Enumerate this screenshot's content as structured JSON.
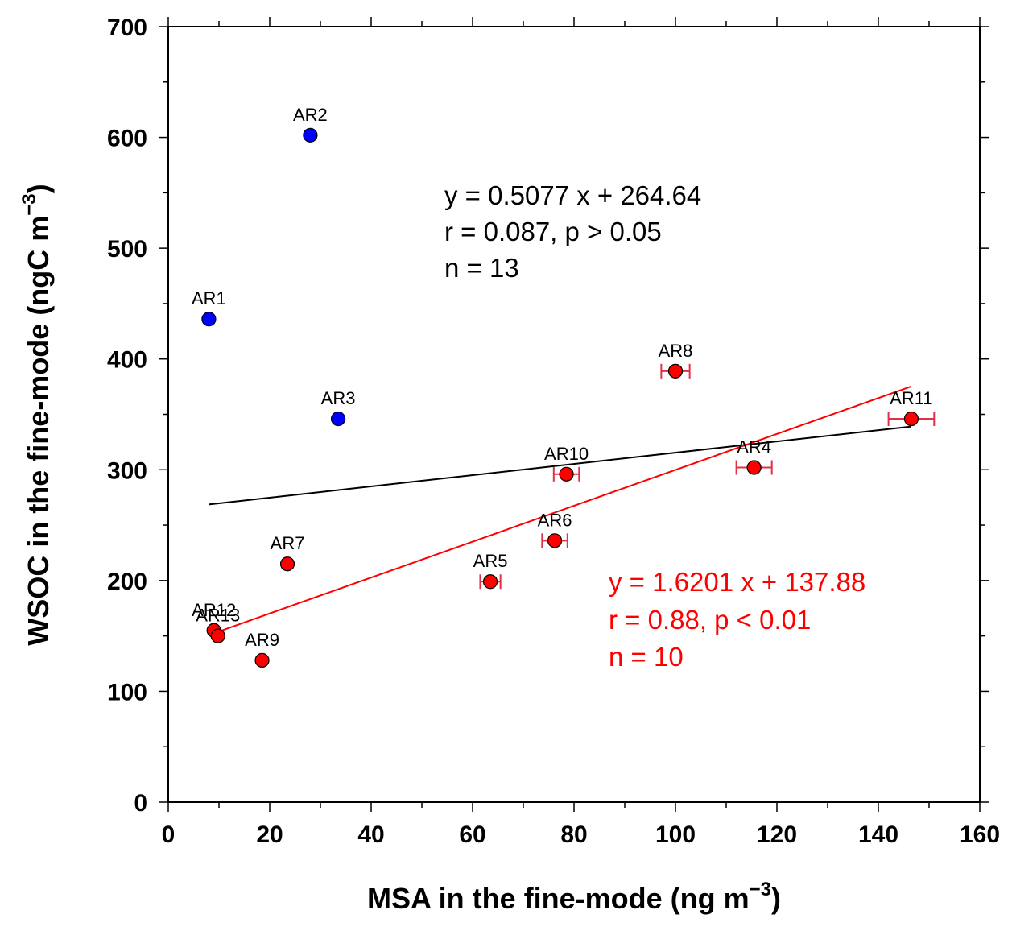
{
  "chart_data": {
    "type": "scatter",
    "xlabel": "MSA in the fine-mode (ng m",
    "xlabel_sup": "−3",
    "xlabel_end": ")",
    "ylabel": "WSOC in the fine-mode (ngC m",
    "ylabel_sup": "−3",
    "ylabel_end": ")",
    "xlim": [
      0,
      160
    ],
    "ylim": [
      0,
      700
    ],
    "xticks": [
      "0",
      "20",
      "40",
      "60",
      "80",
      "100",
      "120",
      "140",
      "160"
    ],
    "yticks": [
      "0",
      "100",
      "200",
      "300",
      "400",
      "500",
      "600",
      "700"
    ],
    "colors": {
      "blue": "#0000ff",
      "red": "#ff0000",
      "black": "#000000",
      "errorbar": "#e0304a"
    },
    "points": [
      {
        "label": "AR1",
        "x": 8,
        "y": 436,
        "color": "blue",
        "xerr": 0
      },
      {
        "label": "AR2",
        "x": 28,
        "y": 602,
        "color": "blue",
        "xerr": 0
      },
      {
        "label": "AR3",
        "x": 33.5,
        "y": 346,
        "color": "blue",
        "xerr": 0
      },
      {
        "label": "AR4",
        "x": 115.5,
        "y": 302,
        "color": "red",
        "xerr": 3.5
      },
      {
        "label": "AR5",
        "x": 63.5,
        "y": 199,
        "color": "red",
        "xerr": 2
      },
      {
        "label": "AR6",
        "x": 76.2,
        "y": 236,
        "color": "red",
        "xerr": 2.5
      },
      {
        "label": "AR7",
        "x": 23.5,
        "y": 215,
        "color": "red",
        "xerr": 0
      },
      {
        "label": "AR8",
        "x": 100,
        "y": 389,
        "color": "red",
        "xerr": 2.8
      },
      {
        "label": "AR9",
        "x": 18.5,
        "y": 128,
        "color": "red",
        "xerr": 0
      },
      {
        "label": "AR10",
        "x": 78.5,
        "y": 296,
        "color": "red",
        "xerr": 2.5
      },
      {
        "label": "AR11",
        "x": 146.5,
        "y": 346,
        "color": "red",
        "xerr": 4.5
      },
      {
        "label": "AR12",
        "x": 9,
        "y": 155,
        "color": "red",
        "xerr": 0
      },
      {
        "label": "AR13",
        "x": 9.8,
        "y": 150,
        "color": "red",
        "xerr": 0
      }
    ],
    "fit_lines": [
      {
        "color": "black",
        "slope": 0.5077,
        "intercept": 264.64,
        "x_range": [
          8,
          146.5
        ]
      },
      {
        "color": "red",
        "slope": 1.6201,
        "intercept": 137.88,
        "x_range": [
          9,
          146.5
        ]
      }
    ],
    "annotations": [
      {
        "color": "black",
        "lines": [
          "y = 0.5077 x + 264.64",
          "r = 0.087, p > 0.05",
          "n = 13"
        ]
      },
      {
        "color": "red",
        "lines": [
          "y = 1.6201 x + 137.88",
          "r = 0.88, p < 0.01",
          "n = 10"
        ]
      }
    ]
  }
}
